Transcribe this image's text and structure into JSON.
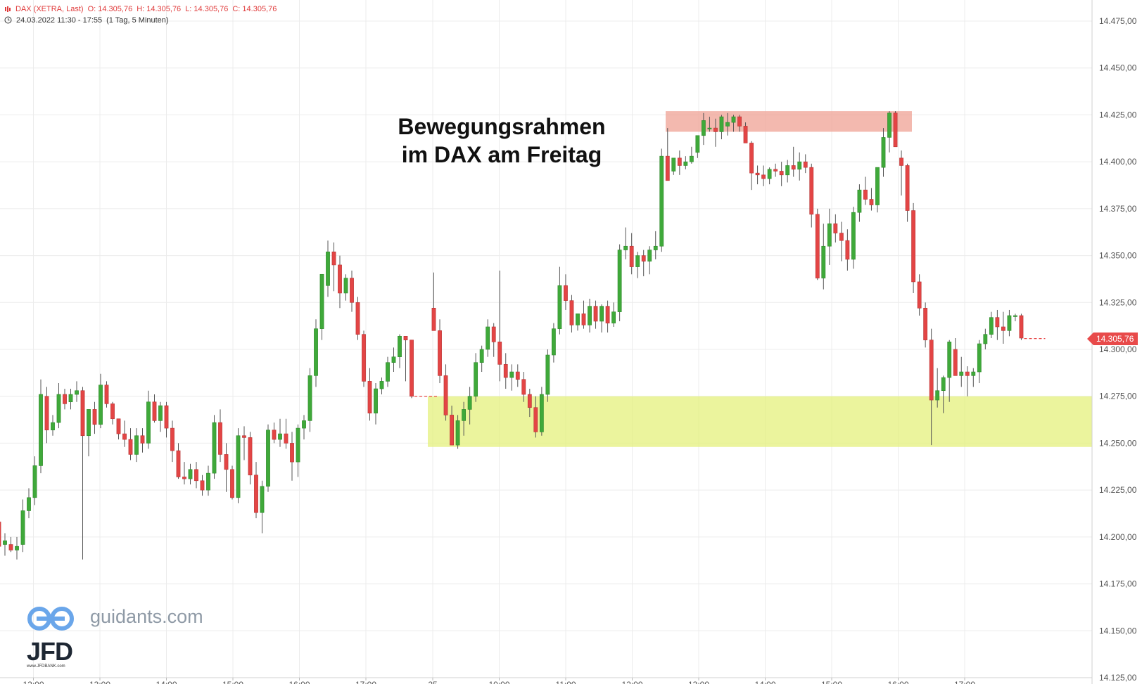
{
  "header": {
    "symbol": "DAX (XETRA, Last)",
    "open": "O: 14.305,76",
    "high": "H: 14.305,76",
    "low": "L: 14.305,76",
    "close": "C: 14.305,76",
    "range": "24.03.2022 11:30 - 17:55",
    "interval": "(1 Tag, 5 Minuten)",
    "icon": "clock-icon"
  },
  "annotation": {
    "line1": "Bewegungsrahmen",
    "line2": "im DAX am Freitag"
  },
  "watermark": {
    "brand": "guidants.com",
    "logo": "JFD",
    "logo_sub": "www.JFDBANK.com"
  },
  "last_price_label": "14.305,76",
  "colors": {
    "up": "#3fa93a",
    "down": "#e34545",
    "band_top": "#f0a89b",
    "band_bottom": "#e4f07c",
    "price": "#e84a4a"
  },
  "chart_data": {
    "type": "candlestick",
    "ylim": [
      14125,
      14475
    ],
    "yticks": [
      "14.125,00",
      "14.150,00",
      "14.175,00",
      "14.200,00",
      "14.225,00",
      "14.250,00",
      "14.275,00",
      "14.300,00",
      "14.325,00",
      "14.350,00",
      "14.375,00",
      "14.400,00",
      "14.425,00",
      "14.450,00",
      "14.475,00"
    ],
    "xticks": [
      "12:00",
      "13:00",
      "14:00",
      "15:00",
      "16:00",
      "17:00",
      "25",
      "10:00",
      "11:00",
      "12:00",
      "13:00",
      "14:00",
      "15:00",
      "16:00",
      "17:00"
    ],
    "last_price": 14305.76,
    "zones": [
      {
        "kind": "resistance",
        "low": 14416,
        "high": 14427
      },
      {
        "kind": "support",
        "low": 14248,
        "high": 14275
      }
    ],
    "day1": [
      [
        14208,
        14210,
        14192,
        14195
      ],
      [
        14196,
        14202,
        14190,
        14198
      ],
      [
        14196,
        14200,
        14192,
        14193
      ],
      [
        14193,
        14200,
        14188,
        14195
      ],
      [
        14196,
        14220,
        14192,
        14214
      ],
      [
        14214,
        14226,
        14210,
        14221
      ],
      [
        14221,
        14243,
        14217,
        14238
      ],
      [
        14238,
        14284,
        14234,
        14276
      ],
      [
        14275,
        14280,
        14250,
        14257
      ],
      [
        14257,
        14265,
        14254,
        14261
      ],
      [
        14261,
        14282,
        14258,
        14276
      ],
      [
        14276,
        14279,
        14268,
        14271
      ],
      [
        14272,
        14279,
        14268,
        14276
      ],
      [
        14276,
        14283,
        14272,
        14278
      ],
      [
        14278,
        14280,
        14188,
        14254
      ],
      [
        14254,
        14266,
        14243,
        14268
      ],
      [
        14268,
        14272,
        14255,
        14260
      ],
      [
        14260,
        14287,
        14258,
        14281
      ],
      [
        14281,
        14283,
        14269,
        14271
      ],
      [
        14271,
        14272,
        14260,
        14263
      ],
      [
        14263,
        14262,
        14252,
        14255
      ],
      [
        14255,
        14262,
        14248,
        14252
      ],
      [
        14252,
        14258,
        14241,
        14244
      ],
      [
        14244,
        14258,
        14240,
        14254
      ],
      [
        14254,
        14258,
        14245,
        14250
      ],
      [
        14250,
        14278,
        14247,
        14272
      ],
      [
        14272,
        14276,
        14261,
        14262
      ],
      [
        14262,
        14272,
        14256,
        14270
      ],
      [
        14270,
        14272,
        14253,
        14258
      ],
      [
        14258,
        14262,
        14240,
        14246
      ],
      [
        14246,
        14250,
        14231,
        14232
      ],
      [
        14232,
        14240,
        14228,
        14231
      ],
      [
        14231,
        14239,
        14228,
        14236
      ],
      [
        14236,
        14240,
        14226,
        14230
      ],
      [
        14230,
        14233,
        14222,
        14225
      ],
      [
        14225,
        14238,
        14222,
        14234
      ],
      [
        14234,
        14265,
        14231,
        14261
      ],
      [
        14261,
        14268,
        14240,
        14244
      ],
      [
        14244,
        14250,
        14224,
        14236
      ],
      [
        14236,
        14238,
        14220,
        14221
      ],
      [
        14221,
        14258,
        14218,
        14254
      ],
      [
        14254,
        14259,
        14241,
        14253
      ],
      [
        14253,
        14256,
        14228,
        14233
      ],
      [
        14233,
        14240,
        14210,
        14213
      ],
      [
        14213,
        14230,
        14202,
        14227
      ],
      [
        14227,
        14260,
        14224,
        14257
      ],
      [
        14257,
        14261,
        14250,
        14252
      ],
      [
        14252,
        14263,
        14248,
        14255
      ],
      [
        14255,
        14263,
        14247,
        14250
      ],
      [
        14250,
        14256,
        14230,
        14240
      ],
      [
        14240,
        14260,
        14232,
        14258
      ],
      [
        14258,
        14265,
        14252,
        14262
      ],
      [
        14262,
        14290,
        14256,
        14286
      ],
      [
        14286,
        14316,
        14280,
        14311
      ],
      [
        14311,
        14330,
        14305,
        14340
      ],
      [
        14334,
        14358,
        14328,
        14352
      ],
      [
        14352,
        14357,
        14331,
        14345
      ],
      [
        14345,
        14350,
        14322,
        14330
      ],
      [
        14330,
        14340,
        14326,
        14338
      ],
      [
        14338,
        14342,
        14320,
        14325
      ],
      [
        14325,
        14328,
        14305,
        14308
      ],
      [
        14308,
        14310,
        14280,
        14283
      ],
      [
        14283,
        14290,
        14262,
        14266
      ],
      [
        14266,
        14282,
        14260,
        14279
      ],
      [
        14279,
        14285,
        14276,
        14283
      ],
      [
        14283,
        14296,
        14280,
        14293
      ],
      [
        14293,
        14301,
        14288,
        14296
      ],
      [
        14296,
        14308,
        14290,
        14307
      ],
      [
        14307,
        14306,
        14283,
        14305
      ],
      [
        14305,
        14305,
        14274,
        14275
      ]
    ],
    "day2": [
      [
        14322,
        14341,
        14314,
        14310
      ],
      [
        14310,
        14316,
        14282,
        14286
      ],
      [
        14286,
        14292,
        14262,
        14265
      ],
      [
        14265,
        14270,
        14250,
        14249
      ],
      [
        14249,
        14265,
        14247,
        14262
      ],
      [
        14262,
        14272,
        14254,
        14268
      ],
      [
        14268,
        14280,
        14260,
        14275
      ],
      [
        14275,
        14298,
        14272,
        14293
      ],
      [
        14293,
        14302,
        14288,
        14300
      ],
      [
        14300,
        14316,
        14296,
        14312
      ],
      [
        14312,
        14314,
        14296,
        14304
      ],
      [
        14304,
        14342,
        14283,
        14292
      ],
      [
        14292,
        14298,
        14279,
        14285
      ],
      [
        14285,
        14292,
        14278,
        14288
      ],
      [
        14288,
        14292,
        14280,
        14284
      ],
      [
        14284,
        14288,
        14272,
        14276
      ],
      [
        14276,
        14279,
        14264,
        14269
      ],
      [
        14269,
        14275,
        14253,
        14256
      ],
      [
        14256,
        14280,
        14254,
        14276
      ],
      [
        14276,
        14300,
        14272,
        14297
      ],
      [
        14297,
        14314,
        14293,
        14311
      ],
      [
        14311,
        14344,
        14308,
        14334
      ],
      [
        14334,
        14340,
        14321,
        14326
      ],
      [
        14326,
        14329,
        14309,
        14313
      ],
      [
        14313,
        14317,
        14310,
        14319
      ],
      [
        14319,
        14326,
        14311,
        14313
      ],
      [
        14313,
        14327,
        14309,
        14323
      ],
      [
        14323,
        14326,
        14311,
        14315
      ],
      [
        14315,
        14324,
        14309,
        14323
      ],
      [
        14323,
        14326,
        14309,
        14314
      ],
      [
        14314,
        14325,
        14312,
        14320
      ],
      [
        14320,
        14356,
        14315,
        14353
      ],
      [
        14353,
        14365,
        14348,
        14355
      ],
      [
        14355,
        14362,
        14340,
        14344
      ],
      [
        14344,
        14352,
        14338,
        14350
      ],
      [
        14350,
        14353,
        14339,
        14347
      ],
      [
        14347,
        14355,
        14340,
        14353
      ],
      [
        14353,
        14363,
        14348,
        14355
      ],
      [
        14355,
        14407,
        14352,
        14403
      ],
      [
        14403,
        14418,
        14392,
        14390
      ],
      [
        14395,
        14400,
        14393,
        14402
      ],
      [
        14402,
        14406,
        14393,
        14398
      ],
      [
        14398,
        14403,
        14396,
        14400
      ],
      [
        14400,
        14408,
        14399,
        14403
      ],
      [
        14405,
        14414,
        14402,
        14414
      ],
      [
        14414,
        14426,
        14409,
        14422
      ],
      [
        14418,
        14424,
        14416,
        14418
      ],
      [
        14418,
        14423,
        14408,
        14416
      ],
      [
        14416,
        14425,
        14412,
        14424
      ],
      [
        14419,
        14426,
        14414,
        14421
      ],
      [
        14421,
        14425,
        14416,
        14424
      ],
      [
        14424,
        14425,
        14416,
        14419
      ],
      [
        14419,
        14421,
        14413,
        14410
      ],
      [
        14410,
        14411,
        14385,
        14394
      ],
      [
        14394,
        14398,
        14388,
        14393
      ],
      [
        14393,
        14398,
        14387,
        14391
      ],
      [
        14391,
        14397,
        14388,
        14396
      ],
      [
        14396,
        14399,
        14392,
        14395
      ],
      [
        14395,
        14400,
        14387,
        14393
      ],
      [
        14393,
        14401,
        14389,
        14398
      ],
      [
        14398,
        14408,
        14392,
        14396
      ],
      [
        14396,
        14405,
        14390,
        14400
      ],
      [
        14400,
        14404,
        14394,
        14397
      ],
      [
        14397,
        14399,
        14365,
        14372
      ],
      [
        14372,
        14375,
        14337,
        14338
      ],
      [
        14338,
        14367,
        14332,
        14355
      ],
      [
        14355,
        14375,
        14345,
        14367
      ],
      [
        14367,
        14372,
        14357,
        14362
      ],
      [
        14362,
        14368,
        14347,
        14358
      ],
      [
        14358,
        14364,
        14342,
        14348
      ],
      [
        14348,
        14376,
        14343,
        14373
      ],
      [
        14373,
        14388,
        14368,
        14385
      ],
      [
        14385,
        14392,
        14377,
        14380
      ],
      [
        14380,
        14386,
        14374,
        14377
      ],
      [
        14377,
        14384,
        14373,
        14397
      ],
      [
        14397,
        14418,
        14392,
        14413
      ],
      [
        14413,
        14427,
        14405,
        14426
      ],
      [
        14426,
        14427,
        14412,
        14408
      ],
      [
        14402,
        14406,
        14382,
        14398
      ],
      [
        14398,
        14399,
        14368,
        14374
      ],
      [
        14374,
        14378,
        14330,
        14336
      ],
      [
        14336,
        14340,
        14318,
        14322
      ],
      [
        14322,
        14325,
        14301,
        14305
      ],
      [
        14305,
        14311,
        14249,
        14273
      ],
      [
        14273,
        14290,
        14269,
        14278
      ],
      [
        14278,
        14286,
        14266,
        14285
      ],
      [
        14285,
        14305,
        14272,
        14304
      ],
      [
        14300,
        14306,
        14289,
        14286
      ],
      [
        14286,
        14296,
        14280,
        14288
      ],
      [
        14288,
        14291,
        14275,
        14286
      ],
      [
        14286,
        14290,
        14280,
        14288
      ],
      [
        14288,
        14305,
        14282,
        14303
      ],
      [
        14303,
        14311,
        14300,
        14308
      ],
      [
        14308,
        14320,
        14306,
        14317
      ],
      [
        14317,
        14321,
        14305,
        14312
      ],
      [
        14312,
        14320,
        14303,
        14310
      ],
      [
        14310,
        14321,
        14307,
        14318
      ],
      [
        14318,
        14319,
        14315,
        14318
      ],
      [
        14318,
        14319,
        14305,
        14306
      ]
    ]
  }
}
